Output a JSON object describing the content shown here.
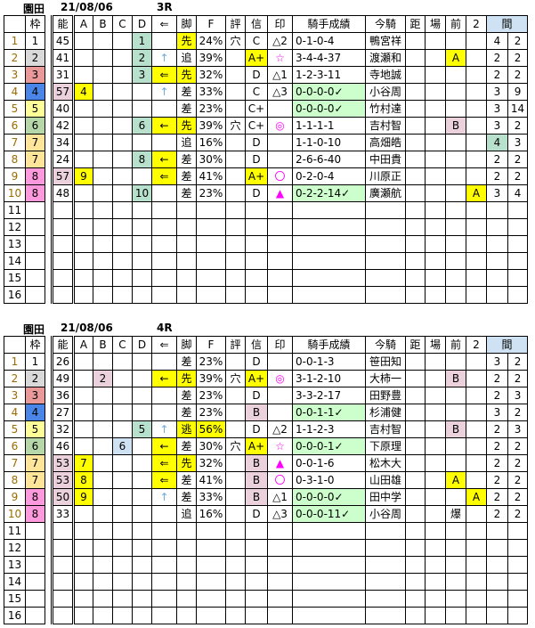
{
  "headers": [
    "",
    "枠",
    "",
    "能",
    "A",
    "B",
    "C",
    "D",
    "⇐",
    "脚",
    "F",
    "評",
    "信",
    "印",
    "騎手成績",
    "今騎",
    "距",
    "場",
    "前",
    "2",
    "間"
  ],
  "colors": {
    "yellow": "#ffff00",
    "green": "#b7e1cd",
    "pink": "#ead1dc",
    "blue": "#cfe2f3",
    "record_green": "#ccffcc",
    "mark": "#ff00ff"
  },
  "races": [
    {
      "venue": "園田",
      "date": "21/08/06",
      "race": "3R",
      "rows": [
        {
          "c": [
            "1",
            "1",
            "45",
            "",
            "",
            "",
            "1",
            "",
            "先",
            "24%",
            "穴",
            "C",
            "△2",
            "0-1-0-4",
            "鴨宮祥",
            "",
            "",
            "",
            "",
            "4",
            "2"
          ],
          "bg": {
            "6": "green",
            "8": "yellow"
          }
        },
        {
          "c": [
            "2",
            "2",
            "41",
            "",
            "",
            "",
            "2",
            "↑",
            "追",
            "39%",
            "",
            "A+",
            "☆",
            "3-4-4-37",
            "渡瀬和",
            "",
            "",
            "A",
            "",
            "2",
            "2"
          ],
          "bg": {
            "6": "green",
            "11": "yellow",
            "17": "yellow"
          }
        },
        {
          "c": [
            "3",
            "3",
            "31",
            "",
            "",
            "",
            "3",
            "⇐",
            "先",
            "32%",
            "",
            "D",
            "△1",
            "1-2-3-11",
            "寺地誠",
            "",
            "",
            "",
            "",
            "2",
            "2"
          ],
          "bg": {
            "6": "green",
            "7": "yellow",
            "8": "yellow"
          }
        },
        {
          "c": [
            "4",
            "4",
            "57",
            "4",
            "",
            "",
            "",
            "↑",
            "差",
            "33%",
            "",
            "C",
            "△3",
            "0-0-0-0✓",
            "小谷周",
            "",
            "",
            "",
            "",
            "3",
            "9"
          ],
          "bg": {
            "2": "pink",
            "3": "yellow",
            "13": "lgreen"
          }
        },
        {
          "c": [
            "5",
            "5",
            "40",
            "",
            "",
            "",
            "",
            "",
            "差",
            "23%",
            "",
            "C+",
            "",
            "0-0-0-0✓",
            "竹村達",
            "",
            "",
            "",
            "",
            "3",
            "14"
          ],
          "bg": {
            "13": "lgreen"
          }
        },
        {
          "c": [
            "6",
            "6",
            "42",
            "",
            "",
            "",
            "6",
            "←",
            "先",
            "39%",
            "穴",
            "C+",
            "◎",
            "1-1-1-1",
            "吉村智",
            "",
            "",
            "B",
            "",
            "3",
            "2"
          ],
          "bg": {
            "6": "green",
            "7": "yellow",
            "8": "yellow",
            "17": "pink"
          }
        },
        {
          "c": [
            "7",
            "7",
            "34",
            "",
            "",
            "",
            "",
            "",
            "追",
            "16%",
            "",
            "D",
            "",
            "1-1-0-10",
            "高畑皓",
            "",
            "",
            "",
            "",
            "4",
            "3"
          ],
          "bg": {
            "19": "green"
          }
        },
        {
          "c": [
            "8",
            "7",
            "24",
            "",
            "",
            "",
            "8",
            "←",
            "差",
            "30%",
            "",
            "D",
            "",
            "2-6-6-40",
            "中田貴",
            "",
            "",
            "",
            "",
            "2",
            "2"
          ],
          "bg": {
            "6": "green",
            "7": "yellow"
          }
        },
        {
          "c": [
            "9",
            "8",
            "57",
            "9",
            "",
            "",
            "",
            "⇐",
            "差",
            "41%",
            "",
            "A+",
            "〇",
            "0-2-0-4",
            "川原正",
            "",
            "",
            "",
            "",
            "2",
            "2"
          ],
          "bg": {
            "2": "pink",
            "3": "yellow",
            "7": "yellow",
            "11": "yellow"
          }
        },
        {
          "c": [
            "10",
            "8",
            "48",
            "",
            "",
            "",
            "10",
            "",
            "差",
            "23%",
            "",
            "D",
            "▲",
            "0-2-2-14✓",
            "廣瀬航",
            "",
            "",
            "",
            "A",
            "3",
            "4"
          ],
          "bg": {
            "6": "green",
            "13": "lgreen",
            "18": "yellow"
          }
        },
        {
          "c": [
            "11"
          ]
        },
        {
          "c": [
            "12"
          ]
        },
        {
          "c": [
            "13"
          ]
        },
        {
          "c": [
            "14"
          ]
        },
        {
          "c": [
            "15"
          ]
        },
        {
          "c": [
            "16"
          ]
        }
      ]
    },
    {
      "venue": "園田",
      "date": "21/08/06",
      "race": "4R",
      "rows": [
        {
          "c": [
            "1",
            "1",
            "26",
            "",
            "",
            "",
            "",
            "",
            "差",
            "23%",
            "",
            "D",
            "",
            "0-0-1-3",
            "笹田知",
            "",
            "",
            "",
            "",
            "3",
            "2"
          ],
          "bg": {}
        },
        {
          "c": [
            "2",
            "2",
            "49",
            "",
            "2",
            "",
            "",
            "←",
            "先",
            "39%",
            "穴",
            "A+",
            "◎",
            "3-1-2-10",
            "大柿一",
            "",
            "",
            "B",
            "",
            "2",
            "2"
          ],
          "bg": {
            "4": "pink",
            "7": "yellow",
            "8": "yellow",
            "11": "yellow",
            "17": "pink"
          }
        },
        {
          "c": [
            "3",
            "3",
            "36",
            "",
            "",
            "",
            "",
            "",
            "差",
            "23%",
            "",
            "D",
            "",
            "3-3-2-17",
            "田野豊",
            "",
            "",
            "",
            "",
            "2",
            "3"
          ],
          "bg": {}
        },
        {
          "c": [
            "4",
            "4",
            "27",
            "",
            "",
            "",
            "",
            "",
            "差",
            "23%",
            "",
            "B",
            "",
            "0-0-1-1✓",
            "杉浦健",
            "",
            "",
            "",
            "",
            "3",
            "2"
          ],
          "bg": {
            "11": "pink",
            "13": "lgreen"
          }
        },
        {
          "c": [
            "5",
            "5",
            "32",
            "",
            "",
            "",
            "5",
            "↑",
            "逃",
            "56%",
            "",
            "D",
            "△2",
            "1-1-2-3",
            "吉村智",
            "",
            "",
            "B",
            "",
            "2",
            "3"
          ],
          "bg": {
            "6": "green",
            "8": "yellow",
            "9": "yellow",
            "17": "pink"
          }
        },
        {
          "c": [
            "6",
            "6",
            "46",
            "",
            "",
            "6",
            "",
            "←",
            "差",
            "30%",
            "穴",
            "A+",
            "☆",
            "0-0-0-1✓",
            "下原理",
            "",
            "",
            "",
            "",
            "2",
            "2"
          ],
          "bg": {
            "5": "blue",
            "7": "yellow",
            "11": "yellow",
            "13": "lgreen"
          }
        },
        {
          "c": [
            "7",
            "7",
            "53",
            "7",
            "",
            "",
            "",
            "⇐",
            "先",
            "32%",
            "",
            "B",
            "▲",
            "0-0-1-6",
            "松木大",
            "",
            "",
            "",
            "",
            "2",
            "2"
          ],
          "bg": {
            "2": "pink",
            "3": "yellow",
            "7": "yellow",
            "8": "yellow",
            "11": "pink"
          }
        },
        {
          "c": [
            "8",
            "7",
            "53",
            "8",
            "",
            "",
            "",
            "⇐",
            "差",
            "41%",
            "",
            "B",
            "〇",
            "0-3-1-0",
            "山田雄",
            "",
            "",
            "A",
            "",
            "2",
            "2"
          ],
          "bg": {
            "2": "pink",
            "3": "yellow",
            "7": "yellow",
            "11": "pink",
            "17": "yellow"
          }
        },
        {
          "c": [
            "9",
            "8",
            "50",
            "9",
            "",
            "",
            "",
            "↑",
            "差",
            "33%",
            "",
            "B",
            "△1",
            "0-0-0-0✓",
            "田中学",
            "",
            "",
            "",
            "A",
            "2",
            "2"
          ],
          "bg": {
            "2": "pink",
            "3": "yellow",
            "11": "pink",
            "13": "lgreen",
            "18": "yellow"
          }
        },
        {
          "c": [
            "10",
            "8",
            "33",
            "",
            "",
            "",
            "",
            "",
            "追",
            "16%",
            "",
            "D",
            "△3",
            "0-0-0-11✓",
            "小谷周",
            "",
            "",
            "爆",
            "",
            "2",
            "2"
          ],
          "bg": {
            "13": "lgreen"
          }
        },
        {
          "c": [
            "11"
          ]
        },
        {
          "c": [
            "12"
          ]
        },
        {
          "c": [
            "13"
          ]
        },
        {
          "c": [
            "14"
          ]
        },
        {
          "c": [
            "15"
          ]
        },
        {
          "c": [
            "16"
          ]
        }
      ]
    }
  ]
}
